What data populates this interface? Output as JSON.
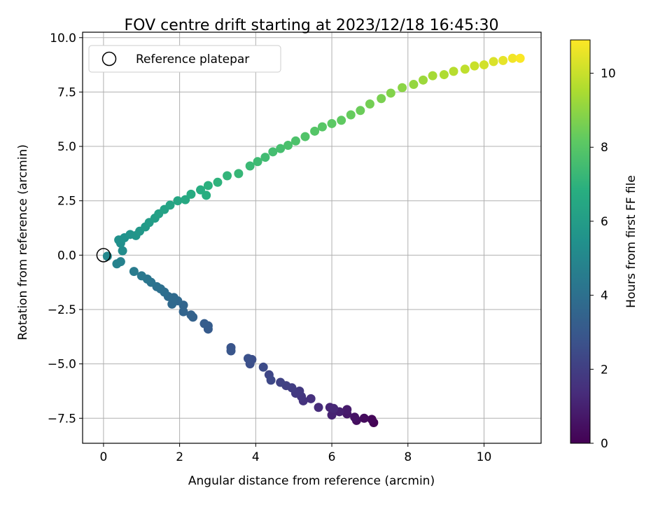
{
  "chart_data": {
    "type": "scatter",
    "title": "FOV centre drift starting at 2023/12/18 16:45:30",
    "xlabel": "Angular distance from reference (arcmin)",
    "ylabel": "Rotation from reference (arcmin)",
    "xlim": [
      -0.55,
      11.5
    ],
    "ylim": [
      -8.65,
      10.25
    ],
    "x_ticks": [
      0,
      2,
      4,
      6,
      8,
      10
    ],
    "x_tick_labels": [
      "0",
      "2",
      "4",
      "6",
      "8",
      "10"
    ],
    "y_ticks": [
      -7.5,
      -5.0,
      -2.5,
      0.0,
      2.5,
      5.0,
      7.5,
      10.0
    ],
    "y_tick_labels": [
      "−7.5",
      "−5.0",
      "−2.5",
      "0.0",
      "2.5",
      "5.0",
      "7.5",
      "10.0"
    ],
    "grid": true,
    "legend": {
      "position": "top-left",
      "entries": [
        "Reference platepar"
      ]
    },
    "reference_point": {
      "x": 0,
      "y": 0,
      "label": "Reference platepar"
    },
    "colorbar": {
      "label": "Hours from first FF file",
      "range": [
        0,
        10.9
      ],
      "ticks": [
        0,
        2,
        4,
        6,
        8,
        10
      ],
      "tick_labels": [
        "0",
        "2",
        "4",
        "6",
        "8",
        "10"
      ],
      "colormap": "viridis"
    },
    "series": [
      {
        "name": "drift",
        "points": [
          {
            "x": 7.1,
            "y": -7.7,
            "t": 0.05
          },
          {
            "x": 7.05,
            "y": -7.55,
            "t": 0.15
          },
          {
            "x": 6.85,
            "y": -7.5,
            "t": 0.3
          },
          {
            "x": 6.65,
            "y": -7.6,
            "t": 0.4
          },
          {
            "x": 6.6,
            "y": -7.45,
            "t": 0.55
          },
          {
            "x": 6.4,
            "y": -7.3,
            "t": 0.7
          },
          {
            "x": 6.4,
            "y": -7.1,
            "t": 0.8
          },
          {
            "x": 6.2,
            "y": -7.2,
            "t": 0.95
          },
          {
            "x": 6.0,
            "y": -7.35,
            "t": 1.05
          },
          {
            "x": 5.95,
            "y": -7.0,
            "t": 1.15
          },
          {
            "x": 6.05,
            "y": -7.05,
            "t": 1.2
          },
          {
            "x": 5.65,
            "y": -7.0,
            "t": 1.35
          },
          {
            "x": 5.45,
            "y": -6.6,
            "t": 1.5
          },
          {
            "x": 5.25,
            "y": -6.7,
            "t": 1.6
          },
          {
            "x": 5.2,
            "y": -6.5,
            "t": 1.7
          },
          {
            "x": 5.15,
            "y": -6.25,
            "t": 1.8
          },
          {
            "x": 5.05,
            "y": -6.35,
            "t": 1.85
          },
          {
            "x": 4.95,
            "y": -6.1,
            "t": 1.95
          },
          {
            "x": 4.8,
            "y": -6.0,
            "t": 2.05
          },
          {
            "x": 4.65,
            "y": -5.85,
            "t": 2.15
          },
          {
            "x": 4.35,
            "y": -5.5,
            "t": 2.3
          },
          {
            "x": 4.4,
            "y": -5.75,
            "t": 2.35
          },
          {
            "x": 4.2,
            "y": -5.15,
            "t": 2.45
          },
          {
            "x": 3.9,
            "y": -4.8,
            "t": 2.6
          },
          {
            "x": 3.85,
            "y": -5.0,
            "t": 2.65
          },
          {
            "x": 3.8,
            "y": -4.75,
            "t": 2.7
          },
          {
            "x": 3.35,
            "y": -4.25,
            "t": 2.85
          },
          {
            "x": 3.35,
            "y": -4.4,
            "t": 2.9
          },
          {
            "x": 2.75,
            "y": -3.4,
            "t": 3.1
          },
          {
            "x": 2.75,
            "y": -3.25,
            "t": 3.15
          },
          {
            "x": 2.65,
            "y": -3.15,
            "t": 3.2
          },
          {
            "x": 2.35,
            "y": -2.85,
            "t": 3.35
          },
          {
            "x": 2.3,
            "y": -2.75,
            "t": 3.4
          },
          {
            "x": 2.1,
            "y": -2.6,
            "t": 3.5
          },
          {
            "x": 2.1,
            "y": -2.3,
            "t": 3.55
          },
          {
            "x": 1.95,
            "y": -2.1,
            "t": 3.65
          },
          {
            "x": 1.8,
            "y": -2.25,
            "t": 3.7
          },
          {
            "x": 1.85,
            "y": -1.95,
            "t": 3.75
          },
          {
            "x": 1.7,
            "y": -1.9,
            "t": 3.8
          },
          {
            "x": 1.6,
            "y": -1.7,
            "t": 3.9
          },
          {
            "x": 1.5,
            "y": -1.55,
            "t": 3.95
          },
          {
            "x": 1.4,
            "y": -1.45,
            "t": 4.05
          },
          {
            "x": 1.25,
            "y": -1.25,
            "t": 4.15
          },
          {
            "x": 1.15,
            "y": -1.1,
            "t": 4.25
          },
          {
            "x": 1.0,
            "y": -0.95,
            "t": 4.35
          },
          {
            "x": 0.8,
            "y": -0.75,
            "t": 4.5
          },
          {
            "x": 0.45,
            "y": -0.3,
            "t": 4.75
          },
          {
            "x": 0.35,
            "y": -0.4,
            "t": 4.8
          },
          {
            "x": 0.1,
            "y": -0.05,
            "t": 5.05
          },
          {
            "x": 0.5,
            "y": 0.2,
            "t": 5.25
          },
          {
            "x": 0.45,
            "y": 0.55,
            "t": 5.35
          },
          {
            "x": 0.4,
            "y": 0.7,
            "t": 5.45
          },
          {
            "x": 0.55,
            "y": 0.8,
            "t": 5.5
          },
          {
            "x": 0.7,
            "y": 0.95,
            "t": 5.6
          },
          {
            "x": 0.85,
            "y": 0.9,
            "t": 5.65
          },
          {
            "x": 0.95,
            "y": 1.1,
            "t": 5.75
          },
          {
            "x": 1.1,
            "y": 1.3,
            "t": 5.85
          },
          {
            "x": 1.2,
            "y": 1.5,
            "t": 5.95
          },
          {
            "x": 1.35,
            "y": 1.7,
            "t": 6.05
          },
          {
            "x": 1.45,
            "y": 1.9,
            "t": 6.15
          },
          {
            "x": 1.6,
            "y": 2.1,
            "t": 6.25
          },
          {
            "x": 1.75,
            "y": 2.3,
            "t": 6.35
          },
          {
            "x": 1.95,
            "y": 2.5,
            "t": 6.45
          },
          {
            "x": 2.15,
            "y": 2.55,
            "t": 6.55
          },
          {
            "x": 2.3,
            "y": 2.8,
            "t": 6.65
          },
          {
            "x": 2.55,
            "y": 3.0,
            "t": 6.75
          },
          {
            "x": 2.7,
            "y": 2.75,
            "t": 6.8
          },
          {
            "x": 2.75,
            "y": 3.2,
            "t": 6.9
          },
          {
            "x": 3.0,
            "y": 3.35,
            "t": 7.0
          },
          {
            "x": 3.25,
            "y": 3.65,
            "t": 7.1
          },
          {
            "x": 3.55,
            "y": 3.75,
            "t": 7.2
          },
          {
            "x": 3.85,
            "y": 4.1,
            "t": 7.3
          },
          {
            "x": 4.05,
            "y": 4.3,
            "t": 7.4
          },
          {
            "x": 4.25,
            "y": 4.5,
            "t": 7.45
          },
          {
            "x": 4.45,
            "y": 4.75,
            "t": 7.55
          },
          {
            "x": 4.65,
            "y": 4.9,
            "t": 7.6
          },
          {
            "x": 4.85,
            "y": 5.05,
            "t": 7.7
          },
          {
            "x": 5.05,
            "y": 5.25,
            "t": 7.75
          },
          {
            "x": 5.3,
            "y": 5.45,
            "t": 7.85
          },
          {
            "x": 5.55,
            "y": 5.7,
            "t": 7.95
          },
          {
            "x": 5.75,
            "y": 5.9,
            "t": 8.0
          },
          {
            "x": 6.0,
            "y": 6.05,
            "t": 8.1
          },
          {
            "x": 6.25,
            "y": 6.2,
            "t": 8.2
          },
          {
            "x": 6.5,
            "y": 6.45,
            "t": 8.3
          },
          {
            "x": 6.75,
            "y": 6.65,
            "t": 8.4
          },
          {
            "x": 7.0,
            "y": 6.95,
            "t": 8.55
          },
          {
            "x": 7.3,
            "y": 7.2,
            "t": 8.65
          },
          {
            "x": 7.55,
            "y": 7.45,
            "t": 8.8
          },
          {
            "x": 7.85,
            "y": 7.7,
            "t": 8.95
          },
          {
            "x": 8.15,
            "y": 7.85,
            "t": 9.1
          },
          {
            "x": 8.4,
            "y": 8.05,
            "t": 9.25
          },
          {
            "x": 8.65,
            "y": 8.25,
            "t": 9.4
          },
          {
            "x": 8.95,
            "y": 8.3,
            "t": 9.55
          },
          {
            "x": 9.2,
            "y": 8.45,
            "t": 9.7
          },
          {
            "x": 9.5,
            "y": 8.55,
            "t": 9.85
          },
          {
            "x": 9.75,
            "y": 8.7,
            "t": 10.0
          },
          {
            "x": 10.0,
            "y": 8.75,
            "t": 10.15
          },
          {
            "x": 10.25,
            "y": 8.9,
            "t": 10.3
          },
          {
            "x": 10.5,
            "y": 8.95,
            "t": 10.5
          },
          {
            "x": 10.75,
            "y": 9.05,
            "t": 10.7
          },
          {
            "x": 10.95,
            "y": 9.05,
            "t": 10.85
          }
        ]
      }
    ]
  }
}
